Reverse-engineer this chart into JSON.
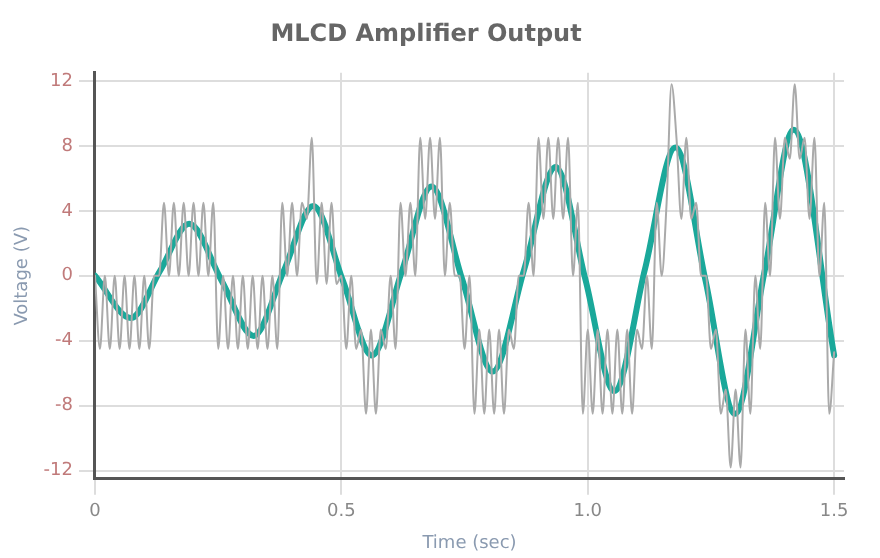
{
  "chart_data": {
    "type": "line",
    "title": "MLCD Amplifier Output",
    "xlabel": "Time (sec)",
    "ylabel": "Voltage (V)",
    "xlim": [
      0,
      1.52
    ],
    "xticks": [
      0,
      0.5,
      {
        "value": 1,
        "label": "1.0"
      },
      1.5
    ],
    "ylim": [
      -12.5,
      12.5
    ],
    "yticks": [
      -12,
      -8,
      -4,
      0,
      4,
      8,
      12
    ],
    "grid": true,
    "legend": false,
    "marker": "none",
    "line_style": "solid",
    "series": [
      {
        "color": "#aaaaaa",
        "x": [
          0,
          0.01,
          0.02,
          0.03,
          0.04,
          0.05,
          0.06,
          0.07,
          0.08,
          0.09,
          0.1,
          0.11,
          0.12,
          0.13,
          0.14,
          0.15,
          0.16,
          0.17,
          0.18,
          0.19,
          0.2,
          0.21,
          0.22,
          0.23,
          0.24,
          0.25,
          0.26,
          0.27,
          0.28,
          0.29,
          0.3,
          0.31,
          0.32,
          0.33,
          0.34,
          0.35,
          0.36,
          0.37,
          0.38,
          0.39,
          0.4,
          0.41,
          0.42,
          0.43,
          0.44,
          0.45,
          0.46,
          0.47,
          0.48,
          0.49,
          0.5,
          0.51,
          0.52,
          0.53,
          0.54,
          0.55,
          0.56,
          0.57,
          0.58,
          0.59,
          0.6,
          0.61,
          0.62,
          0.63,
          0.64,
          0.65,
          0.66,
          0.67,
          0.68,
          0.69,
          0.7,
          0.71,
          0.72,
          0.73,
          0.74,
          0.75,
          0.76,
          0.77,
          0.78,
          0.79,
          0.8,
          0.81,
          0.82,
          0.83,
          0.84,
          0.85,
          0.86,
          0.87,
          0.88,
          0.89,
          0.9,
          0.91,
          0.92,
          0.93,
          0.94,
          0.95,
          0.96,
          0.97,
          0.98,
          0.99,
          1,
          1.01,
          1.02,
          1.03,
          1.04,
          1.05,
          1.06,
          1.07,
          1.08,
          1.09,
          1.1,
          1.11,
          1.12,
          1.13,
          1.14,
          1.15,
          1.16,
          1.17,
          1.18,
          1.19,
          1.2,
          1.21,
          1.22,
          1.23,
          1.24,
          1.25,
          1.26,
          1.27,
          1.28,
          1.29,
          1.3,
          1.31,
          1.32,
          1.33,
          1.34,
          1.35,
          1.36,
          1.37,
          1.38,
          1.39,
          1.4,
          1.41,
          1.42,
          1.43,
          1.44,
          1.45,
          1.46,
          1.47,
          1.48,
          1.49,
          1.5
        ],
        "values": [
          0,
          -4.5,
          0,
          -4.5,
          0,
          -4.5,
          0,
          -4.5,
          0,
          -4.5,
          0,
          -4.5,
          0,
          0,
          4.5,
          0,
          4.5,
          0,
          4.5,
          0,
          4.5,
          0,
          4.5,
          0,
          4.5,
          -4.5,
          0,
          -4.5,
          0,
          -4.5,
          0,
          -4.5,
          0,
          -4.5,
          0,
          -4.5,
          0,
          -4.5,
          4.5,
          0,
          4.5,
          0,
          4.5,
          3.5,
          8.5,
          -0.5,
          4.5,
          -0.5,
          4.5,
          -0.5,
          0,
          -4.5,
          0,
          -4.5,
          -3.3,
          -8.5,
          -3.3,
          -8.5,
          -3.3,
          -4.5,
          0,
          -4.5,
          4.5,
          0,
          4.5,
          0,
          8.5,
          3.5,
          8.5,
          3.5,
          8.5,
          0,
          4.5,
          0,
          0,
          -4.5,
          0,
          -8.5,
          -3.3,
          -8.5,
          -3.3,
          -8.5,
          -3.3,
          -8.5,
          -3.3,
          -4.5,
          0,
          0,
          4.5,
          0,
          8.5,
          3.5,
          8.5,
          3.5,
          8.5,
          3.5,
          8.5,
          0,
          4.5,
          -8.5,
          -3.3,
          -8.5,
          -3.3,
          -8.5,
          -3.3,
          -8.5,
          -3.3,
          -8.5,
          -3.3,
          -8.5,
          -3.3,
          -4.5,
          0,
          -4.5,
          4.5,
          0,
          4.5,
          11.8,
          8.5,
          3.5,
          8.5,
          3.5,
          4.5,
          0,
          0,
          -4.5,
          -3.3,
          -8.5,
          -7,
          -11.8,
          -7,
          -11.8,
          -3.3,
          -8.5,
          0,
          -4.5,
          4.5,
          0,
          8.5,
          3.5,
          8.5,
          7.2,
          11.8,
          7.2,
          8.5,
          3.5,
          8.5,
          0,
          4.5,
          -8.5,
          -4.7
        ]
      },
      {
        "color": "#1aa89a",
        "x": [
          0,
          0.073,
          0.132,
          0.191,
          0.257,
          0.322,
          0.383,
          0.443,
          0.503,
          0.562,
          0.623,
          0.683,
          0.745,
          0.807,
          0.871,
          0.935,
          0.995,
          1.054,
          1.116,
          1.178,
          1.239,
          1.299,
          1.359,
          1.418,
          1.5
        ],
        "values": [
          0,
          -2.6,
          0.3,
          3.2,
          -0.3,
          -3.7,
          0.3,
          4.3,
          -0.3,
          -4.9,
          0.3,
          5.5,
          -0.2,
          -5.9,
          0.4,
          6.7,
          -0.2,
          -7.1,
          0.4,
          7.9,
          -0.3,
          -8.5,
          0.3,
          9.0,
          -4.9
        ]
      }
    ]
  }
}
